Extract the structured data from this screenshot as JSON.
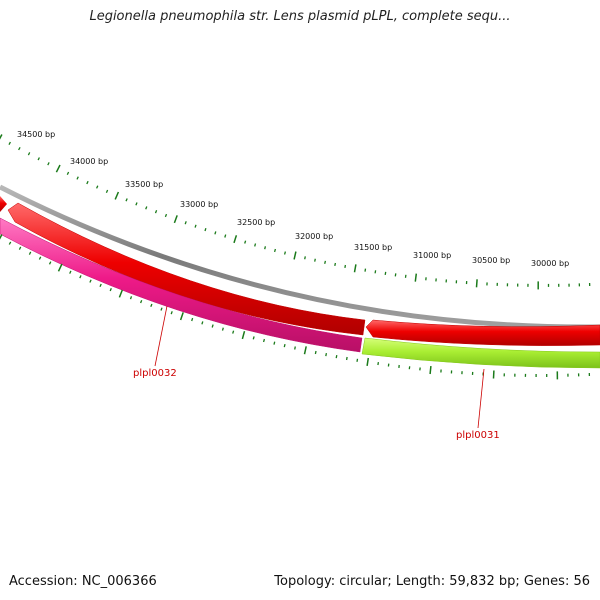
{
  "title": "Legionella pneumophila str. Lens plasmid pLPL, complete sequ...",
  "footer": {
    "accession": "Accession: NC_006366",
    "summary": "Topology: circular; Length: 59,832 bp; Genes: 56"
  },
  "ruler": {
    "labels": [
      "34500 bp",
      "34000 bp",
      "33500 bp",
      "33000 bp",
      "32500 bp",
      "32000 bp",
      "31500 bp",
      "31000 bp",
      "30500 bp",
      "30000 bp"
    ]
  },
  "genes": [
    {
      "label": "plpl0032",
      "color": "#ee1a88"
    },
    {
      "label": "plpl0031",
      "color": "#aaee33"
    }
  ],
  "colors": {
    "backbone": "#888888",
    "forward_strand_gene": "#ee0000",
    "tick": "#1a7a1a",
    "label_line": "#cc0000"
  }
}
